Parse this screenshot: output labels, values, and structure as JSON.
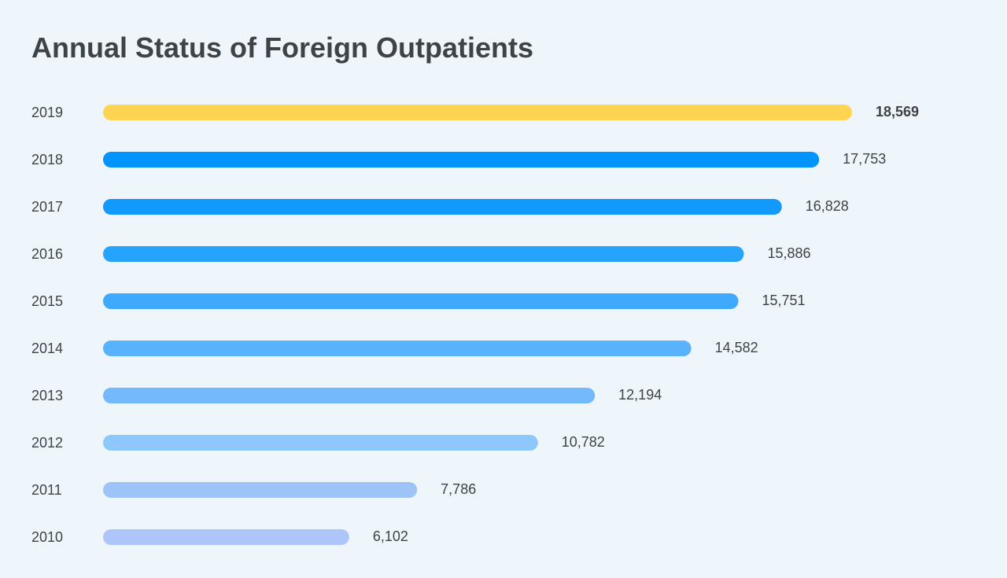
{
  "chart_data": {
    "type": "bar",
    "orientation": "horizontal",
    "title": "Annual Status of Foreign Outpatients",
    "xlabel": "",
    "ylabel": "",
    "grid": false,
    "categories": [
      "2019",
      "2018",
      "2017",
      "2016",
      "2015",
      "2014",
      "2013",
      "2012",
      "2011",
      "2010"
    ],
    "values": [
      18569,
      17753,
      16828,
      15886,
      15751,
      14582,
      12194,
      10782,
      7786,
      6102
    ],
    "value_labels": [
      "18,569",
      "17,753",
      "16,828",
      "15,886",
      "15,751",
      "14,582",
      "12,194",
      "10,782",
      "7,786",
      "6,102"
    ],
    "colors": [
      "#FFD452",
      "#0094FF",
      "#1199FB",
      "#26A3FD",
      "#3FAAFD",
      "#58B2FC",
      "#73B9FB",
      "#8EC7FB",
      "#9EC3F7",
      "#ADC5F8"
    ],
    "highlight": "2019"
  }
}
